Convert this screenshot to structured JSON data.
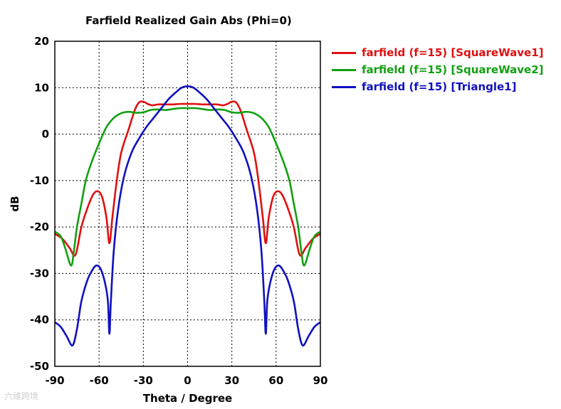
{
  "title": "Farfield Realized Gain Abs (Phi=0)",
  "watermark": "六维跨境",
  "chart_data": {
    "type": "line",
    "title": "Farfield Realized Gain Abs (Phi=0)",
    "xlabel": "Theta / Degree",
    "ylabel": "dB",
    "xlim": [
      -90,
      90
    ],
    "ylim": [
      -50,
      20
    ],
    "xticks": [
      -90,
      -60,
      -30,
      0,
      30,
      60,
      90
    ],
    "yticks": [
      -50,
      -40,
      -30,
      -20,
      -10,
      0,
      10,
      20
    ],
    "grid": true,
    "grid_style": "dotted",
    "legend_position": "outside-right-top",
    "series": [
      {
        "name": "farfield (f=15) [SquareWave1]",
        "color": "#e01010",
        "points": [
          [
            -90,
            -21.5
          ],
          [
            -85,
            -22.5
          ],
          [
            -80,
            -24.5
          ],
          [
            -76,
            -26
          ],
          [
            -72,
            -20
          ],
          [
            -68,
            -16
          ],
          [
            -64,
            -13
          ],
          [
            -61,
            -12.3
          ],
          [
            -58,
            -13.5
          ],
          [
            -55,
            -18
          ],
          [
            -53,
            -23.5
          ],
          [
            -51,
            -18
          ],
          [
            -48,
            -10
          ],
          [
            -45,
            -4
          ],
          [
            -40,
            1
          ],
          [
            -36,
            5
          ],
          [
            -33,
            6.8
          ],
          [
            -30,
            7
          ],
          [
            -27,
            6.5
          ],
          [
            -24,
            6.2
          ],
          [
            -20,
            6.4
          ],
          [
            -15,
            6.4
          ],
          [
            -10,
            6.4
          ],
          [
            -5,
            6.5
          ],
          [
            0,
            6.5
          ],
          [
            5,
            6.5
          ],
          [
            10,
            6.4
          ],
          [
            15,
            6.4
          ],
          [
            20,
            6.4
          ],
          [
            24,
            6.2
          ],
          [
            27,
            6.5
          ],
          [
            30,
            7
          ],
          [
            33,
            6.8
          ],
          [
            36,
            5
          ],
          [
            40,
            1
          ],
          [
            45,
            -4
          ],
          [
            48,
            -10
          ],
          [
            51,
            -18
          ],
          [
            53,
            -23.5
          ],
          [
            55,
            -18
          ],
          [
            58,
            -13.5
          ],
          [
            61,
            -12.3
          ],
          [
            64,
            -13
          ],
          [
            68,
            -16
          ],
          [
            72,
            -20
          ],
          [
            76,
            -26
          ],
          [
            80,
            -24.5
          ],
          [
            85,
            -22.5
          ],
          [
            90,
            -21.5
          ]
        ]
      },
      {
        "name": "farfield (f=15) [SquareWave2]",
        "color": "#10a010",
        "points": [
          [
            -90,
            -21
          ],
          [
            -86,
            -22
          ],
          [
            -83,
            -24.5
          ],
          [
            -79,
            -28.3
          ],
          [
            -77,
            -25
          ],
          [
            -75,
            -20
          ],
          [
            -72,
            -15
          ],
          [
            -69,
            -10
          ],
          [
            -65,
            -6
          ],
          [
            -60,
            -2
          ],
          [
            -55,
            1.5
          ],
          [
            -50,
            3.5
          ],
          [
            -45,
            4.5
          ],
          [
            -40,
            4.8
          ],
          [
            -35,
            4.6
          ],
          [
            -30,
            4.7
          ],
          [
            -25,
            5.2
          ],
          [
            -20,
            5.3
          ],
          [
            -15,
            5.2
          ],
          [
            -10,
            5.4
          ],
          [
            -5,
            5.6
          ],
          [
            0,
            5.6
          ],
          [
            5,
            5.6
          ],
          [
            10,
            5.4
          ],
          [
            15,
            5.2
          ],
          [
            20,
            5.3
          ],
          [
            25,
            5.2
          ],
          [
            30,
            4.7
          ],
          [
            35,
            4.6
          ],
          [
            40,
            4.8
          ],
          [
            45,
            4.5
          ],
          [
            50,
            3.5
          ],
          [
            55,
            1.5
          ],
          [
            60,
            -2
          ],
          [
            65,
            -6
          ],
          [
            69,
            -10
          ],
          [
            72,
            -15
          ],
          [
            75,
            -20
          ],
          [
            77,
            -25
          ],
          [
            79,
            -28.3
          ],
          [
            83,
            -24.5
          ],
          [
            86,
            -22
          ],
          [
            90,
            -21
          ]
        ]
      },
      {
        "name": "farfield (f=15) [Triangle1]",
        "color": "#1010c0",
        "points": [
          [
            -90,
            -40.5
          ],
          [
            -86,
            -41.5
          ],
          [
            -82,
            -43.5
          ],
          [
            -78,
            -45.5
          ],
          [
            -75,
            -42
          ],
          [
            -72,
            -36
          ],
          [
            -68,
            -31.5
          ],
          [
            -65,
            -29.5
          ],
          [
            -62,
            -28.3
          ],
          [
            -59,
            -29
          ],
          [
            -56,
            -32
          ],
          [
            -54,
            -36
          ],
          [
            -53,
            -43
          ],
          [
            -52,
            -36
          ],
          [
            -50,
            -25
          ],
          [
            -47,
            -16
          ],
          [
            -43,
            -9
          ],
          [
            -38,
            -4
          ],
          [
            -33,
            -1
          ],
          [
            -28,
            1.5
          ],
          [
            -23,
            3.5
          ],
          [
            -18,
            5.5
          ],
          [
            -13,
            7.5
          ],
          [
            -8,
            9
          ],
          [
            -4,
            10
          ],
          [
            0,
            10.3
          ],
          [
            4,
            10
          ],
          [
            8,
            9
          ],
          [
            13,
            7.5
          ],
          [
            18,
            5.5
          ],
          [
            23,
            3.5
          ],
          [
            28,
            1.5
          ],
          [
            33,
            -1
          ],
          [
            38,
            -4
          ],
          [
            43,
            -9
          ],
          [
            47,
            -16
          ],
          [
            50,
            -25
          ],
          [
            52,
            -36
          ],
          [
            53,
            -43
          ],
          [
            54,
            -36
          ],
          [
            56,
            -32
          ],
          [
            59,
            -29
          ],
          [
            62,
            -28.3
          ],
          [
            65,
            -29.5
          ],
          [
            68,
            -31.5
          ],
          [
            72,
            -36
          ],
          [
            75,
            -42
          ],
          [
            78,
            -45.5
          ],
          [
            82,
            -43.5
          ],
          [
            86,
            -41.5
          ],
          [
            90,
            -40.5
          ]
        ]
      }
    ]
  }
}
